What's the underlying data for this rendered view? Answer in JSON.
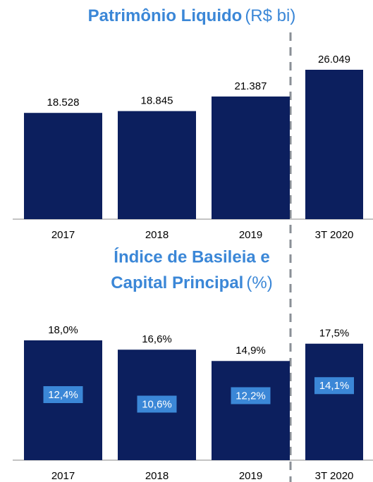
{
  "chart_data": [
    {
      "type": "bar",
      "title": "Patrimônio Liquido",
      "unit": "(R$ bi)",
      "categories": [
        "2017",
        "2018",
        "2019",
        "3T 2020"
      ],
      "values": [
        18.528,
        18.845,
        21.387,
        26.049
      ],
      "color": "#0c1f5e"
    },
    {
      "type": "bar_inner",
      "title": [
        "Índice de Basileia e",
        "Capital Principal"
      ],
      "unit": "(%)",
      "categories": [
        "2017",
        "2018",
        "2019",
        "3T 2020"
      ],
      "series": [
        {
          "color": "#0c1f5e",
          "values": [
            18.0,
            16.6,
            14.9,
            17.5
          ],
          "value_labels": [
            "18,0%",
            "16,6%",
            "14,9%",
            "17,5%"
          ]
        },
        {
          "color": "#3b87d7",
          "values": [
            12.4,
            10.6,
            12.2,
            14.1
          ],
          "value_labels": [
            "12,4%",
            "10,6%",
            "12,2%",
            "14,1%"
          ]
        }
      ]
    }
  ]
}
